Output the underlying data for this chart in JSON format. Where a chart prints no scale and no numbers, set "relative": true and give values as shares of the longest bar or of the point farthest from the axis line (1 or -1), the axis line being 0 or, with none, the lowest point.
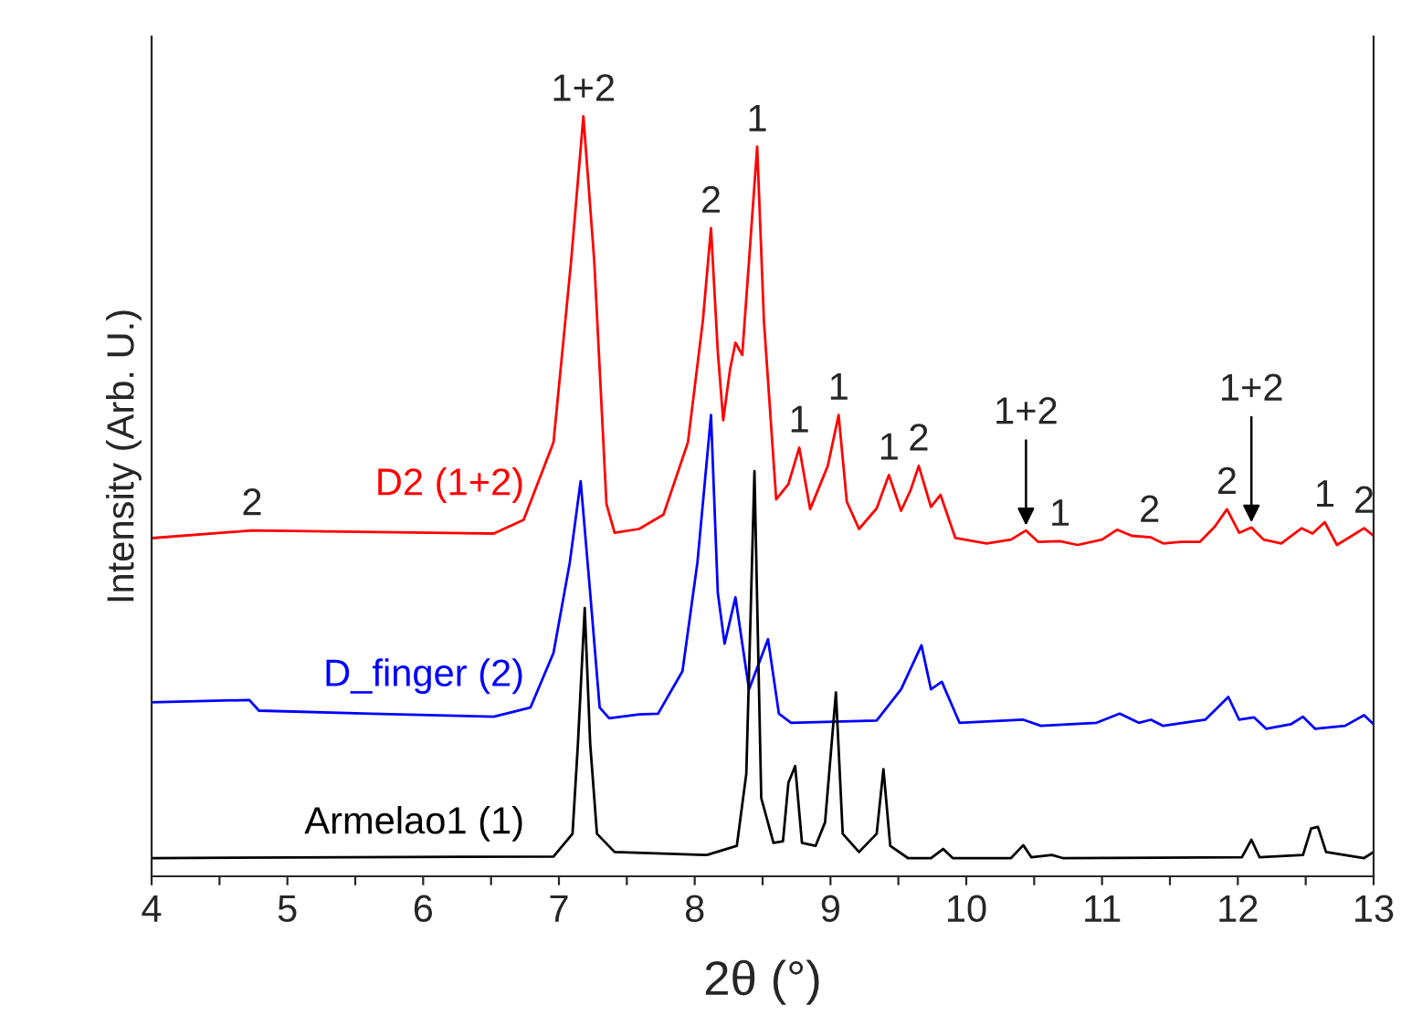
{
  "chart_data": {
    "type": "line",
    "relative": true,
    "xlabel": "2θ (°)",
    "ylabel": "Intensity (Arb. U.)",
    "xlim": [
      4,
      13
    ],
    "xticks": [
      4,
      {
        "value": 4.5,
        "label": null
      },
      5,
      {
        "value": 5.5,
        "label": null
      },
      6,
      {
        "value": 6.5,
        "label": null
      },
      7,
      {
        "value": 7.5,
        "label": null
      },
      8,
      {
        "value": 8.5,
        "label": null
      },
      9,
      {
        "value": 9.5,
        "label": null
      },
      10,
      {
        "value": 10.5,
        "label": null
      },
      11,
      {
        "value": 11.5,
        "label": null
      },
      12,
      {
        "value": 12.5,
        "label": null
      },
      13
    ],
    "grid": false,
    "legend": false,
    "marker": "none",
    "line_style": "solid",
    "series": [
      {
        "name": "D2 (1+2)",
        "color": "#ff0000",
        "x": [
          4.0,
          4.74,
          6.52,
          6.74,
          6.96,
          7.09,
          7.18,
          7.26,
          7.35,
          7.41,
          7.59,
          7.77,
          7.95,
          8.06,
          8.12,
          8.17,
          8.21,
          8.26,
          8.3,
          8.35,
          8.4,
          8.46,
          8.51,
          8.6,
          8.69,
          8.77,
          8.85,
          8.98,
          9.06,
          9.12,
          9.21,
          9.34,
          9.43,
          9.52,
          9.59,
          9.65,
          9.74,
          9.81,
          9.92,
          10.15,
          10.33,
          10.44,
          10.53,
          10.69,
          10.82,
          11.0,
          11.11,
          11.22,
          11.36,
          11.45,
          11.58,
          11.72,
          11.83,
          11.92,
          12.01,
          12.1,
          12.19,
          12.32,
          12.47,
          12.55,
          12.64,
          12.73,
          12.84,
          12.93,
          13.0
        ],
        "values": [
          0.445,
          0.455,
          0.451,
          0.469,
          0.571,
          0.81,
          1.0,
          0.81,
          0.49,
          0.452,
          0.457,
          0.476,
          0.571,
          0.731,
          0.853,
          0.69,
          0.6,
          0.667,
          0.702,
          0.686,
          0.81,
          0.96,
          0.73,
          0.496,
          0.516,
          0.564,
          0.483,
          0.54,
          0.607,
          0.493,
          0.457,
          0.484,
          0.528,
          0.481,
          0.508,
          0.54,
          0.486,
          0.502,
          0.445,
          0.438,
          0.443,
          0.455,
          0.44,
          0.441,
          0.436,
          0.443,
          0.456,
          0.448,
          0.446,
          0.438,
          0.44,
          0.44,
          0.46,
          0.483,
          0.452,
          0.459,
          0.443,
          0.438,
          0.458,
          0.451,
          0.466,
          0.436,
          0.448,
          0.458,
          0.448
        ]
      },
      {
        "name": "D_finger (2)",
        "color": "#0000ff",
        "x": [
          4.0,
          4.72,
          4.79,
          5.62,
          6.52,
          6.79,
          6.96,
          7.08,
          7.16,
          7.23,
          7.3,
          7.37,
          7.59,
          7.73,
          7.91,
          8.02,
          8.12,
          8.17,
          8.22,
          8.3,
          8.4,
          8.54,
          8.62,
          8.71,
          9.34,
          9.52,
          9.67,
          9.74,
          9.82,
          9.95,
          10.42,
          10.55,
          10.96,
          11.13,
          11.27,
          11.36,
          11.45,
          11.76,
          11.85,
          11.93,
          12.01,
          12.12,
          12.21,
          12.39,
          12.48,
          12.57,
          12.79,
          12.93,
          13.0
        ],
        "values": [
          0.229,
          0.232,
          0.218,
          0.214,
          0.21,
          0.222,
          0.294,
          0.413,
          0.52,
          0.373,
          0.222,
          0.208,
          0.213,
          0.214,
          0.27,
          0.413,
          0.607,
          0.373,
          0.306,
          0.367,
          0.246,
          0.312,
          0.214,
          0.202,
          0.205,
          0.246,
          0.304,
          0.246,
          0.256,
          0.202,
          0.206,
          0.198,
          0.202,
          0.214,
          0.202,
          0.206,
          0.198,
          0.206,
          0.222,
          0.236,
          0.206,
          0.209,
          0.194,
          0.2,
          0.21,
          0.194,
          0.198,
          0.212,
          0.2
        ]
      },
      {
        "name": "Armelao1 (1)",
        "color": "#000000",
        "x": [
          4.0,
          6.96,
          7.1,
          7.14,
          7.19,
          7.23,
          7.28,
          7.41,
          8.09,
          8.31,
          8.38,
          8.44,
          8.49,
          8.58,
          8.65,
          8.69,
          8.74,
          8.79,
          8.89,
          8.96,
          9.04,
          9.09,
          9.21,
          9.34,
          9.39,
          9.44,
          9.57,
          9.74,
          9.83,
          9.9,
          10.33,
          10.42,
          10.48,
          10.63,
          10.71,
          12.03,
          12.1,
          12.16,
          12.48,
          12.54,
          12.59,
          12.65,
          12.93,
          13.0
        ],
        "values": [
          0.024,
          0.026,
          0.056,
          0.175,
          0.353,
          0.175,
          0.056,
          0.032,
          0.028,
          0.04,
          0.135,
          0.533,
          0.103,
          0.044,
          0.046,
          0.123,
          0.145,
          0.044,
          0.04,
          0.071,
          0.242,
          0.056,
          0.032,
          0.056,
          0.141,
          0.04,
          0.024,
          0.024,
          0.036,
          0.024,
          0.024,
          0.041,
          0.025,
          0.028,
          0.024,
          0.025,
          0.048,
          0.025,
          0.028,
          0.063,
          0.065,
          0.032,
          0.024,
          0.032
        ]
      }
    ],
    "annotations": [
      {
        "text": "2",
        "x": 4.74,
        "y": 0.455
      },
      {
        "text": "1+2",
        "x": 7.18,
        "y": 1.0
      },
      {
        "text": "2",
        "x": 8.12,
        "y": 0.853
      },
      {
        "text": "1",
        "x": 8.46,
        "y": 0.96
      },
      {
        "text": "1",
        "x": 8.77,
        "y": 0.564
      },
      {
        "text": "1",
        "x": 9.06,
        "y": 0.607
      },
      {
        "text": "1",
        "x": 9.43,
        "y": 0.528
      },
      {
        "text": "2",
        "x": 9.65,
        "y": 0.54
      },
      {
        "text": "1",
        "x": 10.69,
        "y": 0.441
      },
      {
        "text": "1+2",
        "x": 10.44,
        "y": 0.455
      },
      {
        "text": "2",
        "x": 11.35,
        "y": 0.446
      },
      {
        "text": "2",
        "x": 11.92,
        "y": 0.483
      },
      {
        "text": "1+2",
        "x": 12.1,
        "y": 0.459
      },
      {
        "text": "1",
        "x": 12.64,
        "y": 0.466
      },
      {
        "text": "2",
        "x": 12.93,
        "y": 0.458
      }
    ]
  }
}
